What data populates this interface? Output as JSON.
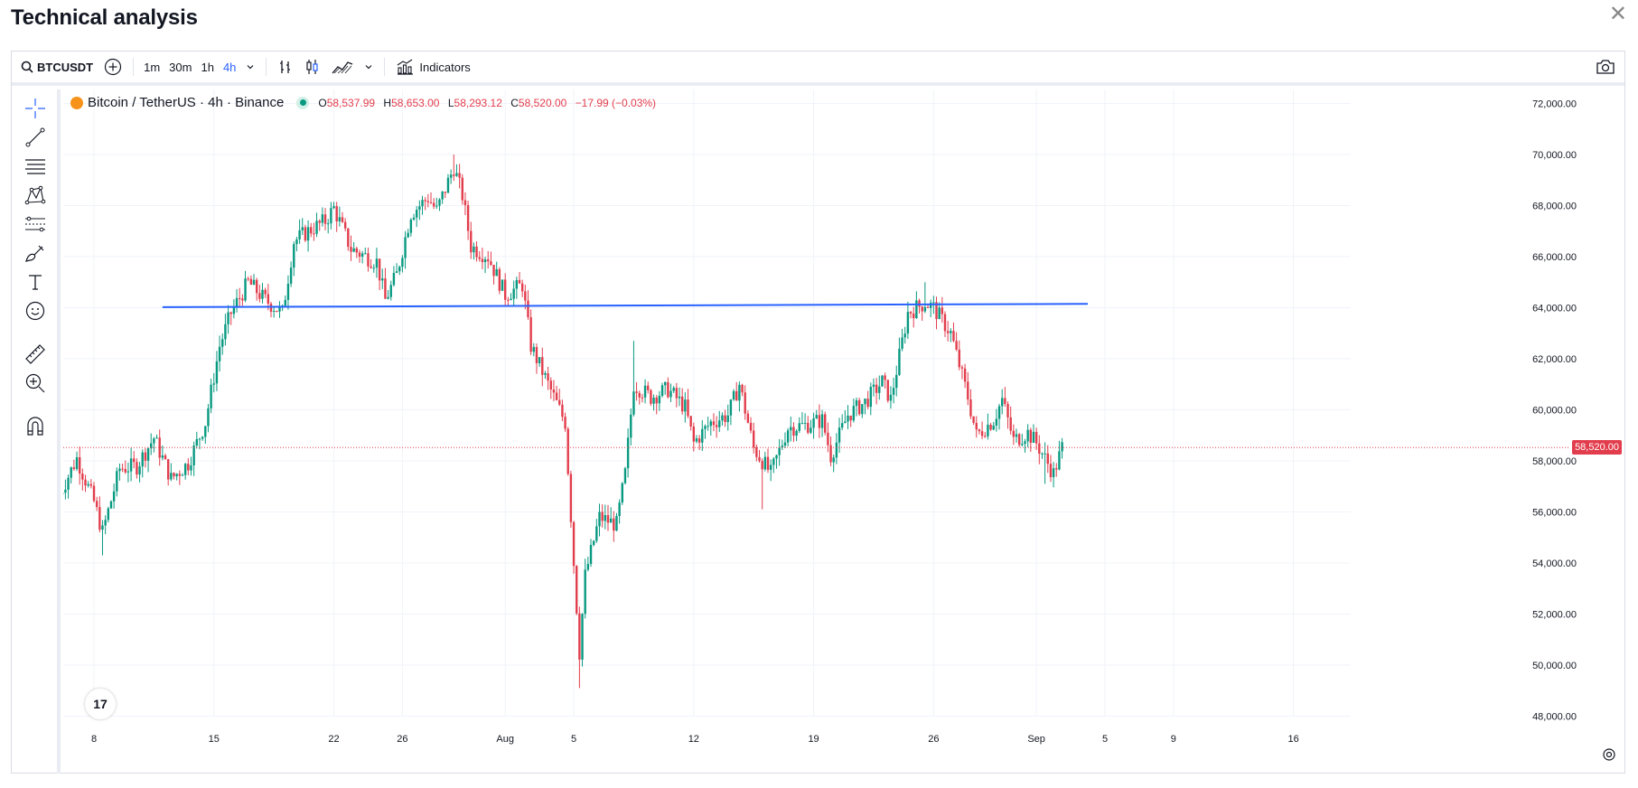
{
  "page": {
    "title": "Technical analysis",
    "close_label": "✕"
  },
  "toolbar": {
    "symbol": "BTCUSDT",
    "timeframes": [
      "1m",
      "30m",
      "1h",
      "4h"
    ],
    "active_timeframe": "4h",
    "indicators_label": "Indicators"
  },
  "left_tools": [
    "crosshair-icon",
    "trend-line-icon",
    "fib-retracement-icon",
    "pattern-icon",
    "prediction-icon",
    "brush-icon",
    "text-icon",
    "emoji-icon",
    "ruler-icon",
    "zoom-in-icon",
    "magnet-icon"
  ],
  "legend": {
    "symbol_text": "Bitcoin / TetherUS · 4h · Binance",
    "o_label": "O",
    "o_value": "58,537.99",
    "h_label": "H",
    "h_value": "58,653.00",
    "l_label": "L",
    "l_value": "58,293.12",
    "c_label": "C",
    "c_value": "58,520.00",
    "change": "−17.99 (−0.03%)"
  },
  "logo_text": "17",
  "colors": {
    "up": "#089981",
    "down": "#e23d4c",
    "trendline": "#2962ff",
    "accent": "#2962ff"
  },
  "chart_data": {
    "type": "candlestick",
    "title": "",
    "ylim": [
      47000,
      73000
    ],
    "y_ticks": [
      "48,000.00",
      "50,000.00",
      "52,000.00",
      "54,000.00",
      "56,000.00",
      "58,000.00",
      "60,000.00",
      "62,000.00",
      "64,000.00",
      "66,000.00",
      "68,000.00",
      "70,000.00",
      "72,000.00"
    ],
    "x_ticks": [
      "8",
      "15",
      "22",
      "26",
      "Aug",
      "5",
      "12",
      "19",
      "26",
      "Sep",
      "5",
      "9",
      "16"
    ],
    "last_price": "58,520.00",
    "trend_line": {
      "start_date": "2024-07-12",
      "start_price": 64020,
      "end_date": "2024-09-04",
      "end_price": 64150
    },
    "close_path": [
      [
        "2024-07-06T00:00",
        56700
      ],
      [
        "2024-07-07T00:00",
        58100
      ],
      [
        "2024-07-08T00:00",
        56400
      ],
      [
        "2024-07-08T12:00",
        55200
      ],
      [
        "2024-07-09T12:00",
        57700
      ],
      [
        "2024-07-10T12:00",
        57800
      ],
      [
        "2024-07-11T12:00",
        58900
      ],
      [
        "2024-07-12T12:00",
        57300
      ],
      [
        "2024-07-13T12:00",
        57900
      ],
      [
        "2024-07-14T12:00",
        59500
      ],
      [
        "2024-07-15T08:00",
        62500
      ],
      [
        "2024-07-16T00:00",
        63800
      ],
      [
        "2024-07-17T00:00",
        65000
      ],
      [
        "2024-07-18T00:00",
        64300
      ],
      [
        "2024-07-19T00:00",
        63800
      ],
      [
        "2024-07-19T16:00",
        66600
      ],
      [
        "2024-07-20T12:00",
        67000
      ],
      [
        "2024-07-21T12:00",
        67400
      ],
      [
        "2024-07-22T00:00",
        67900
      ],
      [
        "2024-07-23T00:00",
        66300
      ],
      [
        "2024-07-24T12:00",
        65800
      ],
      [
        "2024-07-25T00:00",
        64300
      ],
      [
        "2024-07-25T16:00",
        65300
      ],
      [
        "2024-07-26T12:00",
        67700
      ],
      [
        "2024-07-27T12:00",
        68300
      ],
      [
        "2024-07-28T00:00",
        67800
      ],
      [
        "2024-07-29T00:00",
        69500
      ],
      [
        "2024-07-29T12:00",
        68400
      ],
      [
        "2024-07-30T00:00",
        66400
      ],
      [
        "2024-07-31T00:00",
        66000
      ],
      [
        "2024-08-01T00:00",
        64500
      ],
      [
        "2024-08-02T00:00",
        64900
      ],
      [
        "2024-08-02T12:00",
        62500
      ],
      [
        "2024-08-03T12:00",
        61000
      ],
      [
        "2024-08-04T12:00",
        59500
      ],
      [
        "2024-08-05T00:00",
        54000
      ],
      [
        "2024-08-05T08:00",
        50500
      ],
      [
        "2024-08-05T16:00",
        53500
      ],
      [
        "2024-08-06T12:00",
        55800
      ],
      [
        "2024-08-07T12:00",
        55500
      ],
      [
        "2024-08-08T00:00",
        57500
      ],
      [
        "2024-08-08T12:00",
        61000
      ],
      [
        "2024-08-09T12:00",
        60500
      ],
      [
        "2024-08-10T12:00",
        60800
      ],
      [
        "2024-08-11T12:00",
        60100
      ],
      [
        "2024-08-12T00:00",
        58700
      ],
      [
        "2024-08-13T00:00",
        59500
      ],
      [
        "2024-08-14T00:00",
        59800
      ],
      [
        "2024-08-14T16:00",
        61000
      ],
      [
        "2024-08-15T12:00",
        58500
      ],
      [
        "2024-08-16T12:00",
        57500
      ],
      [
        "2024-08-17T12:00",
        59300
      ],
      [
        "2024-08-18T12:00",
        59400
      ],
      [
        "2024-08-19T12:00",
        59600
      ],
      [
        "2024-08-20T00:00",
        58200
      ],
      [
        "2024-08-21T00:00",
        59800
      ],
      [
        "2024-08-22T00:00",
        60300
      ],
      [
        "2024-08-23T00:00",
        61100
      ],
      [
        "2024-08-23T12:00",
        60400
      ],
      [
        "2024-08-24T12:00",
        63800
      ],
      [
        "2024-08-25T12:00",
        64200
      ],
      [
        "2024-08-26T00:00",
        64000
      ],
      [
        "2024-08-27T00:00",
        63000
      ],
      [
        "2024-08-28T00:00",
        60500
      ],
      [
        "2024-08-28T12:00",
        59000
      ],
      [
        "2024-08-29T12:00",
        59600
      ],
      [
        "2024-08-30T00:00",
        60400
      ],
      [
        "2024-08-30T16:00",
        58800
      ],
      [
        "2024-08-31T12:00",
        59100
      ],
      [
        "2024-09-01T00:00",
        58700
      ],
      [
        "2024-09-01T12:00",
        58100
      ],
      [
        "2024-09-02T00:00",
        57500
      ],
      [
        "2024-09-02T12:00",
        58520
      ]
    ],
    "lows": [
      [
        "2024-07-08T12:00",
        54300
      ],
      [
        "2024-08-05T08:00",
        49100
      ],
      [
        "2024-08-16T00:00",
        56100
      ],
      [
        "2024-09-01T12:00",
        57100
      ]
    ],
    "highs": [
      [
        "2024-07-29T00:00",
        70000
      ],
      [
        "2024-08-08T12:00",
        62700
      ],
      [
        "2024-08-25T12:00",
        65000
      ]
    ]
  }
}
